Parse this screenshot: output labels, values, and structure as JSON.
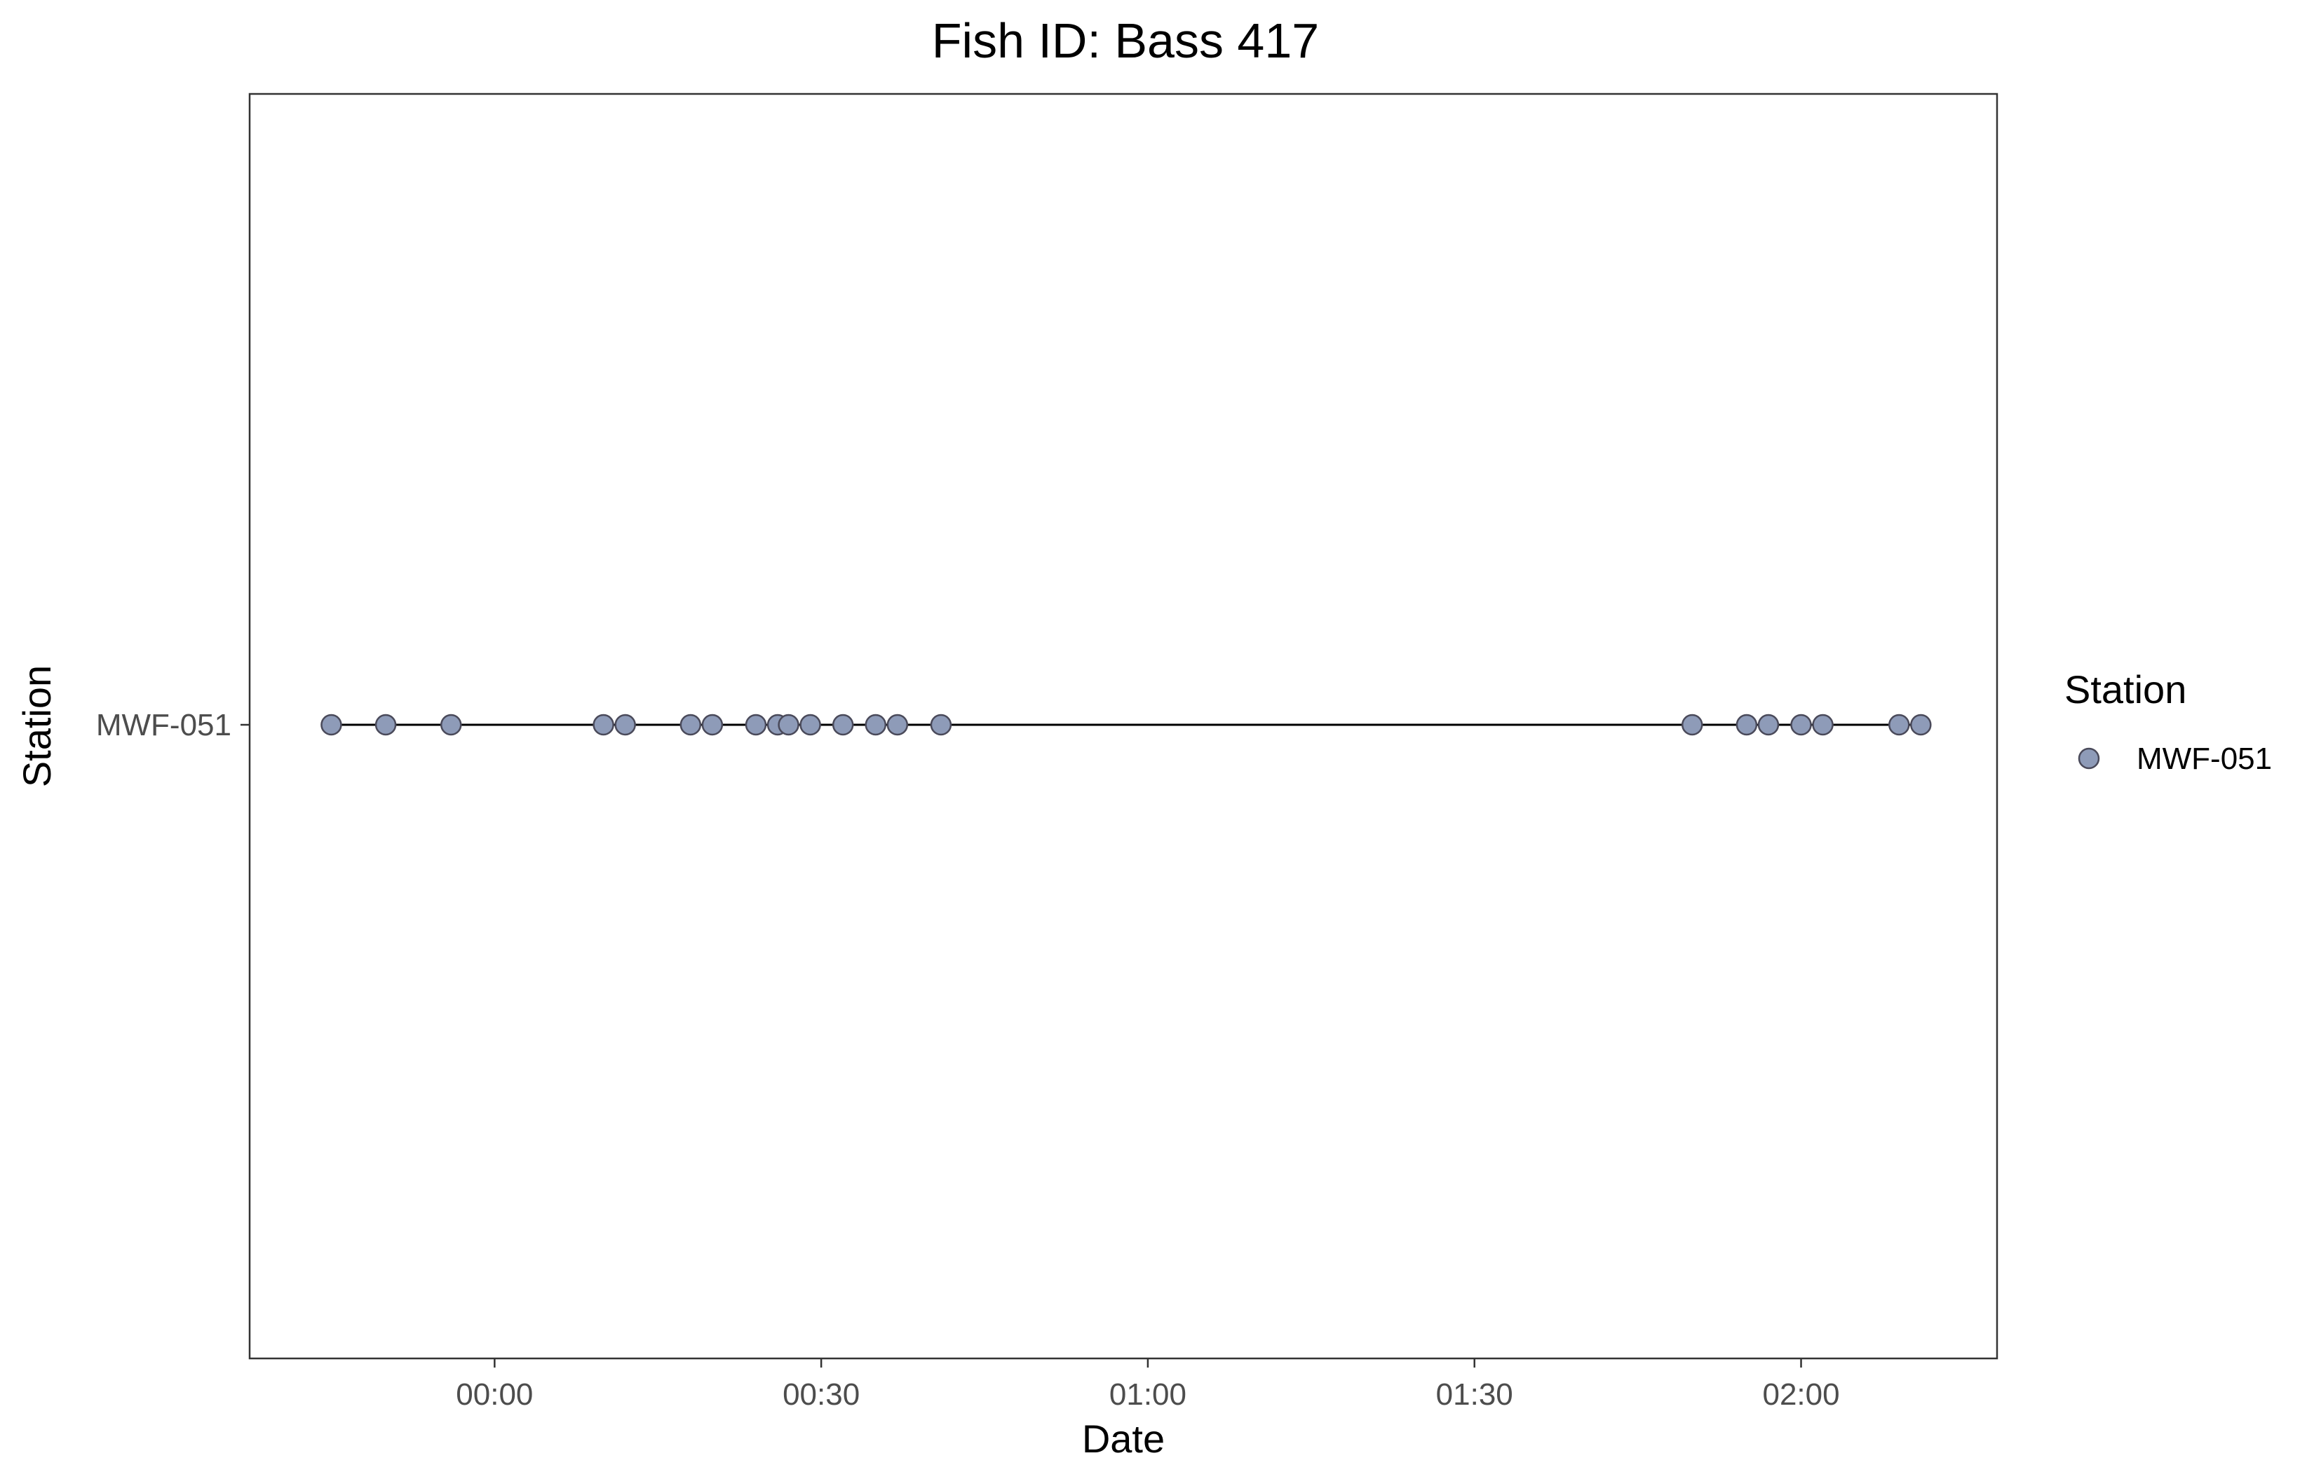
{
  "chart_data": {
    "type": "scatter",
    "title": "Fish ID: Bass 417",
    "xlabel": "Date",
    "ylabel": "Station",
    "x_unit": "time (HH:MM)",
    "x_ticks": [
      "00:00",
      "00:30",
      "01:00",
      "01:30",
      "02:00"
    ],
    "xlim": [
      "-00:22.5",
      "02:18"
    ],
    "categories": [
      "MWF-051"
    ],
    "series": [
      {
        "name": "MWF-051",
        "color": "#8e9bb8",
        "connected_by_line": true,
        "x": [
          "-00:15",
          "-00:10",
          "-00:04",
          "00:10",
          "00:12",
          "00:18",
          "00:20",
          "00:24",
          "00:26",
          "00:27",
          "00:29",
          "00:32",
          "00:35",
          "00:37",
          "00:41",
          "01:50",
          "01:55",
          "01:57",
          "02:00",
          "02:02",
          "02:09",
          "02:11"
        ],
        "y": [
          "MWF-051",
          "MWF-051",
          "MWF-051",
          "MWF-051",
          "MWF-051",
          "MWF-051",
          "MWF-051",
          "MWF-051",
          "MWF-051",
          "MWF-051",
          "MWF-051",
          "MWF-051",
          "MWF-051",
          "MWF-051",
          "MWF-051",
          "MWF-051",
          "MWF-051",
          "MWF-051",
          "MWF-051",
          "MWF-051",
          "MWF-051",
          "MWF-051"
        ]
      }
    ],
    "legend": {
      "title": "Station",
      "entries": [
        "MWF-051"
      ],
      "position": "right"
    },
    "grid": false,
    "theme": "white background with black panel border"
  }
}
